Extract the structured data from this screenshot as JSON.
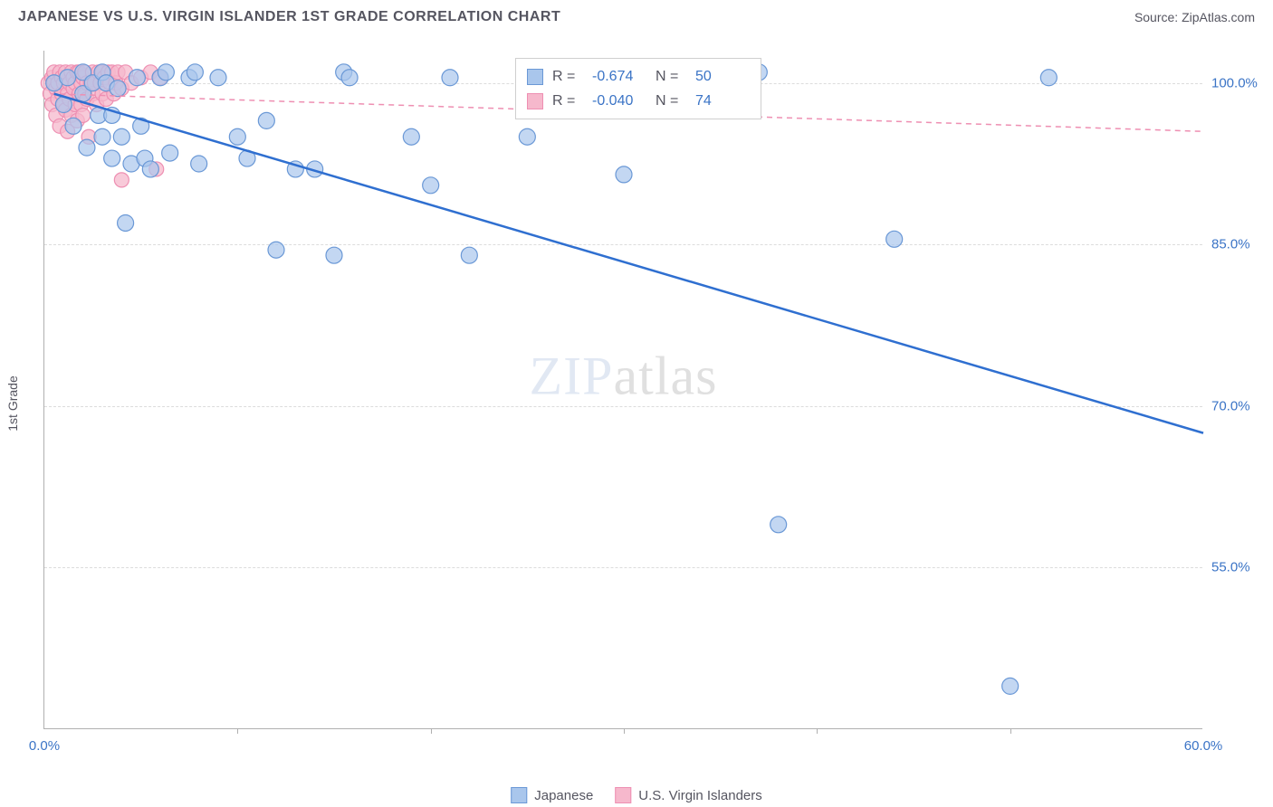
{
  "header": {
    "title": "JAPANESE VS U.S. VIRGIN ISLANDER 1ST GRADE CORRELATION CHART",
    "source_prefix": "Source: ",
    "source_name": "ZipAtlas.com"
  },
  "watermark": {
    "part1": "ZIP",
    "part2": "atlas"
  },
  "chart": {
    "type": "scatter",
    "ylabel": "1st Grade",
    "x_range": [
      0,
      60
    ],
    "y_range": [
      40,
      103
    ],
    "x_ticks": [
      0.0,
      60.0
    ],
    "x_tick_labels": [
      "0.0%",
      "60.0%"
    ],
    "x_minor_ticks": [
      10,
      20,
      30,
      40,
      50
    ],
    "y_gridlines": [
      55.0,
      70.0,
      85.0,
      100.0
    ],
    "y_tick_labels": [
      "55.0%",
      "70.0%",
      "85.0%",
      "100.0%"
    ],
    "background_color": "#ffffff",
    "grid_color": "#dcdcdc",
    "axis_color": "#b0b0b0",
    "tick_label_color": "#3b74c6",
    "series": [
      {
        "name": "Japanese",
        "marker_fill": "#a9c6ec",
        "marker_stroke": "#6a98d6",
        "marker_opacity": 0.7,
        "marker_radius": 9,
        "line_color": "#2f6fd0",
        "line_width": 2.5,
        "line_dash": "none",
        "trend": {
          "x1": 0.5,
          "y1": 99.0,
          "x2": 60.0,
          "y2": 67.5
        },
        "R": "-0.674",
        "N": "50",
        "points": [
          [
            0.5,
            100
          ],
          [
            1,
            98
          ],
          [
            1.2,
            100.5
          ],
          [
            1.5,
            96
          ],
          [
            2,
            99
          ],
          [
            2,
            101
          ],
          [
            2.2,
            94
          ],
          [
            2.5,
            100
          ],
          [
            2.8,
            97
          ],
          [
            3,
            95
          ],
          [
            3,
            101
          ],
          [
            3.2,
            100
          ],
          [
            3.5,
            93
          ],
          [
            3.5,
            97
          ],
          [
            3.8,
            99.5
          ],
          [
            4,
            95
          ],
          [
            4.2,
            87
          ],
          [
            4.5,
            92.5
          ],
          [
            4.8,
            100.5
          ],
          [
            5,
            96
          ],
          [
            5.2,
            93
          ],
          [
            5.5,
            92
          ],
          [
            6,
            100.5
          ],
          [
            6.3,
            101
          ],
          [
            6.5,
            93.5
          ],
          [
            7.5,
            100.5
          ],
          [
            7.8,
            101
          ],
          [
            8,
            92.5
          ],
          [
            9,
            100.5
          ],
          [
            10,
            95
          ],
          [
            10.5,
            93
          ],
          [
            11.5,
            96.5
          ],
          [
            12,
            84.5
          ],
          [
            13,
            92
          ],
          [
            14,
            92
          ],
          [
            15,
            84
          ],
          [
            15.5,
            101
          ],
          [
            15.8,
            100.5
          ],
          [
            19,
            95
          ],
          [
            20,
            90.5
          ],
          [
            21,
            100.5
          ],
          [
            22,
            84
          ],
          [
            25,
            95
          ],
          [
            30,
            91.5
          ],
          [
            37,
            101
          ],
          [
            38,
            59
          ],
          [
            44,
            85.5
          ],
          [
            50,
            44
          ],
          [
            52,
            100.5
          ]
        ]
      },
      {
        "name": "U.S. Virgin Islanders",
        "marker_fill": "#f6b8cc",
        "marker_stroke": "#ee8fb2",
        "marker_opacity": 0.75,
        "marker_radius": 8,
        "line_color": "#ee8fb2",
        "line_width": 1.5,
        "line_dash": "6,5",
        "trend": {
          "x1": 0.3,
          "y1": 99.0,
          "x2": 60.0,
          "y2": 95.5
        },
        "R": "-0.040",
        "N": "74",
        "points": [
          [
            0.2,
            100
          ],
          [
            0.3,
            99
          ],
          [
            0.4,
            100.5
          ],
          [
            0.4,
            98
          ],
          [
            0.5,
            100
          ],
          [
            0.5,
            101
          ],
          [
            0.6,
            97
          ],
          [
            0.6,
            99.5
          ],
          [
            0.7,
            100
          ],
          [
            0.7,
            98.5
          ],
          [
            0.8,
            101
          ],
          [
            0.8,
            96
          ],
          [
            0.9,
            100.5
          ],
          [
            0.9,
            99
          ],
          [
            1.0,
            98
          ],
          [
            1.0,
            100
          ],
          [
            1.1,
            97.5
          ],
          [
            1.1,
            101
          ],
          [
            1.2,
            99
          ],
          [
            1.2,
            95.5
          ],
          [
            1.3,
            100
          ],
          [
            1.3,
            98.5
          ],
          [
            1.4,
            101
          ],
          [
            1.4,
            97
          ],
          [
            1.5,
            100.5
          ],
          [
            1.5,
            99.5
          ],
          [
            1.6,
            98
          ],
          [
            1.6,
            100
          ],
          [
            1.7,
            101
          ],
          [
            1.7,
            96.5
          ],
          [
            1.8,
            99
          ],
          [
            1.8,
            101
          ],
          [
            1.9,
            100
          ],
          [
            1.9,
            98
          ],
          [
            2.0,
            100.5
          ],
          [
            2.0,
            97
          ],
          [
            2.1,
            101
          ],
          [
            2.1,
            99
          ],
          [
            2.2,
            100
          ],
          [
            2.2,
            98.5
          ],
          [
            2.3,
            95
          ],
          [
            2.4,
            100
          ],
          [
            2.5,
            101
          ],
          [
            2.5,
            99
          ],
          [
            2.6,
            100
          ],
          [
            2.7,
            98
          ],
          [
            2.8,
            101
          ],
          [
            2.9,
            100
          ],
          [
            3.0,
            99
          ],
          [
            3.0,
            101
          ],
          [
            3.1,
            100.5
          ],
          [
            3.2,
            98.5
          ],
          [
            3.3,
            101
          ],
          [
            3.4,
            100
          ],
          [
            3.5,
            101
          ],
          [
            3.6,
            99
          ],
          [
            3.7,
            100
          ],
          [
            3.8,
            101
          ],
          [
            4.0,
            99.5
          ],
          [
            4.2,
            101
          ],
          [
            4.5,
            100
          ],
          [
            4.0,
            91
          ],
          [
            5.0,
            100.5
          ],
          [
            5.5,
            101
          ],
          [
            5.8,
            92
          ],
          [
            6.0,
            100.5
          ]
        ]
      }
    ]
  },
  "legend_top": {
    "rows": [
      {
        "swatch_fill": "#a9c6ec",
        "swatch_stroke": "#6a98d6",
        "r_label": "R =",
        "r_val": "-0.674",
        "n_label": "N =",
        "n_val": "50"
      },
      {
        "swatch_fill": "#f6b8cc",
        "swatch_stroke": "#ee8fb2",
        "r_label": "R =",
        "r_val": "-0.040",
        "n_label": "N =",
        "n_val": "74"
      }
    ]
  },
  "legend_bottom": {
    "items": [
      {
        "swatch_fill": "#a9c6ec",
        "swatch_stroke": "#6a98d6",
        "label": "Japanese"
      },
      {
        "swatch_fill": "#f6b8cc",
        "swatch_stroke": "#ee8fb2",
        "label": "U.S. Virgin Islanders"
      }
    ]
  }
}
